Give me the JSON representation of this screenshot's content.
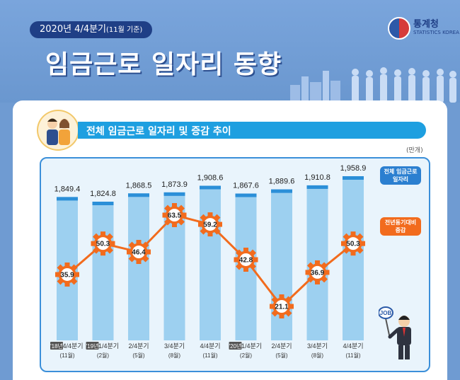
{
  "header": {
    "period": "2020년 4/4분기",
    "period_note": "(11월 기준)",
    "title": "임금근로 일자리 동향",
    "logo_ko": "통계청",
    "logo_en": "STATISTICS KOREA"
  },
  "section": {
    "title": "전체 임금근로 일자리 및 증감 추이"
  },
  "legend": {
    "bar": "전체 임금근로 일자리",
    "rate": "전년동기대비 증감",
    "job": "JOB"
  },
  "colors": {
    "bar": "#9dd0f0",
    "rate": "#f26b1d",
    "accent": "#1e9fe0",
    "title_bg": "#1f3f86"
  },
  "chart_data": {
    "type": "bar",
    "unit": "(만개)",
    "categories": [
      "4/4분기",
      "1/4분기",
      "2/4분기",
      "3/4분기",
      "4/4분기",
      "1/4분기",
      "2/4분기",
      "3/4분기",
      "4/4분기"
    ],
    "category_months": [
      "(11월)",
      "(2월)",
      "(5월)",
      "(8월)",
      "(11월)",
      "(2월)",
      "(5월)",
      "(8월)",
      "(11월)"
    ],
    "year_tags": [
      "'18년",
      "'19년",
      "",
      "",
      "",
      "'20년",
      "",
      "",
      ""
    ],
    "series": [
      {
        "name": "전체 임금근로 일자리",
        "type": "bar",
        "values": [
          1849.4,
          1824.8,
          1868.5,
          1873.9,
          1908.6,
          1867.6,
          1889.6,
          1910.8,
          1958.9
        ],
        "labels": [
          "1,849.4",
          "1,824.8",
          "1,868.5",
          "1,873.9",
          "1,908.6",
          "1,867.6",
          "1,889.6",
          "1,910.8",
          "1,958.9"
        ]
      },
      {
        "name": "전년동기대비 증감",
        "type": "line",
        "values": [
          35.9,
          50.3,
          46.4,
          63.5,
          59.2,
          42.8,
          21.1,
          36.9,
          50.3
        ],
        "labels": [
          "35.9",
          "50.3",
          "46.4",
          "63.5",
          "59.2",
          "42.8",
          "21.1",
          "36.9",
          "50.3"
        ]
      }
    ]
  }
}
